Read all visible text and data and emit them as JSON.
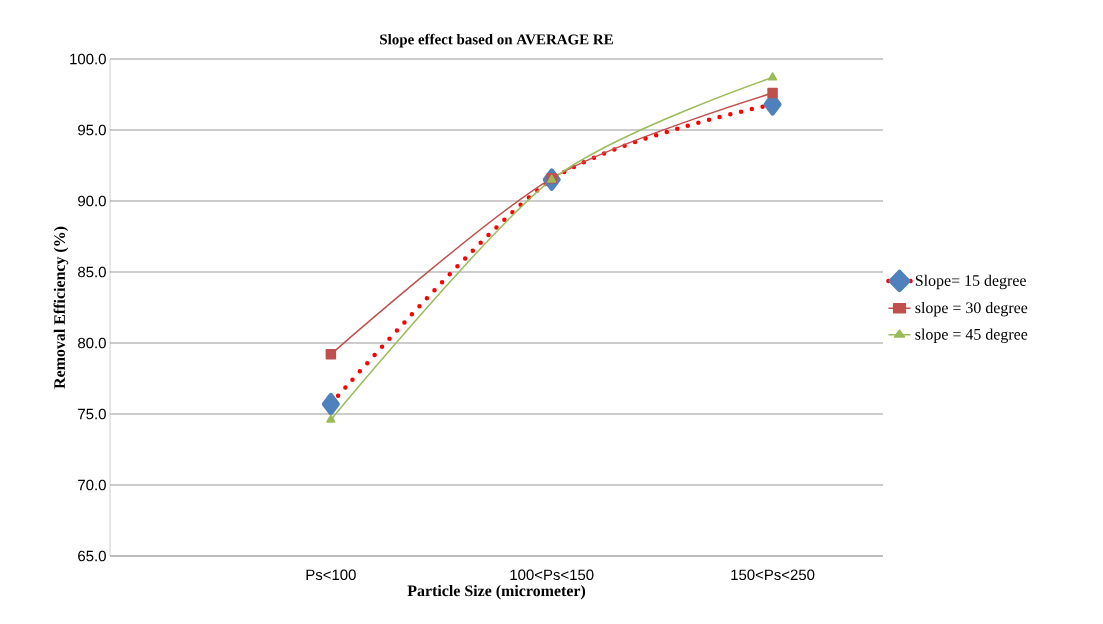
{
  "chart_data": {
    "type": "line",
    "title": "Slope effect based on AVERAGE RE",
    "xlabel": "Particle Size (micrometer)",
    "ylabel": "Removal Efficiency (%)",
    "categories": [
      "Ps<100",
      "100<Ps<150",
      "150<Ps<250"
    ],
    "series": [
      {
        "name": "Slope= 15 degree",
        "color": "#ff0000",
        "colors": [
          "#4f81bd",
          "#4f81bd",
          "#4f81bd"
        ],
        "line_style": "dotted",
        "marker": "diamond",
        "values": [
          75.7,
          91.5,
          96.8
        ]
      },
      {
        "name": "slope = 30 degree",
        "color": "#c0504d",
        "line_style": "solid",
        "marker": "square",
        "values": [
          79.2,
          91.6,
          97.6
        ]
      },
      {
        "name": "slope = 45 degree",
        "color": "#9bbb59",
        "line_style": "solid",
        "marker": "triangle",
        "values": [
          74.6,
          91.5,
          98.7
        ]
      }
    ],
    "ylim": [
      65,
      100
    ],
    "yticks": [
      {
        "value": 65,
        "label": "65.0"
      },
      {
        "value": 70,
        "label": "70.0"
      },
      {
        "value": 75,
        "label": "75.0"
      },
      {
        "value": 80,
        "label": "80.0"
      },
      {
        "value": 85,
        "label": "85.0"
      },
      {
        "value": 90,
        "label": "90.0"
      },
      {
        "value": 95,
        "label": "95.0"
      },
      {
        "value": 100,
        "label": "100.0"
      }
    ],
    "grid": "y",
    "legend": "right"
  }
}
